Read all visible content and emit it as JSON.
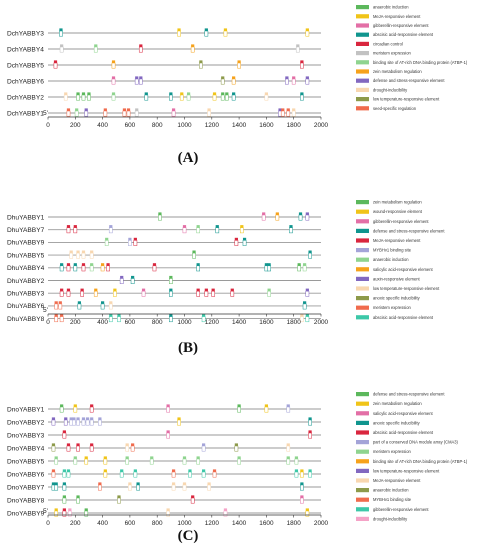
{
  "panels": [
    {
      "label": "(A)",
      "genes": [
        "DchYABBY3",
        "DchYABBY4",
        "DchYABBY5",
        "DchYABBY6",
        "DchYABBY2",
        "DchYABBY1"
      ],
      "axis": {
        "ticks": [
          "0",
          "200",
          "400",
          "600",
          "800",
          "1000",
          "1200",
          "1400",
          "1600",
          "1800",
          "2000"
        ],
        "five_prime": "5'"
      },
      "legend": [
        {
          "label": "anaerobic induction",
          "color": "#5cb85c"
        },
        {
          "label": "MeJA-responsive element",
          "color": "#f0c419"
        },
        {
          "label": "gibberellin-responsive element",
          "color": "#e36fa6"
        },
        {
          "label": "abscisic acid-responsive element",
          "color": "#10958e"
        },
        {
          "label": "circadian control",
          "color": "#d9263e"
        },
        {
          "label": "meristem expression",
          "color": "#c2c2c2"
        },
        {
          "label": "binding site of AT-rich DNA binding protein (ATBP-1)",
          "color": "#8fd48f"
        },
        {
          "label": "zein metabolism regulation",
          "color": "#f6a21b"
        },
        {
          "label": "defense and stress-responsive element",
          "color": "#8268c0"
        },
        {
          "label": "drought-inducibility",
          "color": "#f8d7b0"
        },
        {
          "label": "low temperature-responsive element",
          "color": "#8d9a4a"
        },
        {
          "label": "seed-specific regulation",
          "color": "#f06b4d"
        }
      ],
      "elements": [
        [
          [
            95,
            3
          ],
          [
            960,
            1
          ],
          [
            1160,
            3
          ],
          [
            1300,
            1
          ],
          [
            1900,
            1
          ]
        ],
        [
          [
            100,
            5
          ],
          [
            350,
            6
          ],
          [
            680,
            4
          ],
          [
            1060,
            7
          ],
          [
            1830,
            5
          ]
        ],
        [
          [
            55,
            4
          ],
          [
            480,
            7
          ],
          [
            1120,
            10
          ],
          [
            1400,
            7
          ],
          [
            1860,
            4
          ]
        ],
        [
          [
            480,
            2
          ],
          [
            650,
            8
          ],
          [
            680,
            8
          ],
          [
            1280,
            10
          ],
          [
            1360,
            7
          ],
          [
            1750,
            8
          ],
          [
            1800,
            2
          ],
          [
            1900,
            8
          ]
        ],
        [
          [
            130,
            9
          ],
          [
            220,
            0
          ],
          [
            260,
            0
          ],
          [
            300,
            0
          ],
          [
            480,
            6
          ],
          [
            720,
            3
          ],
          [
            900,
            3
          ],
          [
            980,
            1
          ],
          [
            1030,
            6
          ],
          [
            1220,
            1
          ],
          [
            1280,
            0
          ],
          [
            1310,
            0
          ],
          [
            1360,
            3
          ],
          [
            1600,
            9
          ],
          [
            1860,
            3
          ]
        ],
        [
          [
            150,
            11
          ],
          [
            210,
            6
          ],
          [
            280,
            8
          ],
          [
            420,
            11
          ],
          [
            560,
            11
          ],
          [
            590,
            11
          ],
          [
            650,
            5
          ],
          [
            920,
            2
          ],
          [
            1180,
            9
          ],
          [
            1700,
            8
          ],
          [
            1720,
            11
          ],
          [
            1760,
            11
          ],
          [
            1800,
            9
          ]
        ]
      ]
    },
    {
      "label": "(B)",
      "genes": [
        "DhuYABBY1",
        "DhuYABBY7",
        "DhuYABBY9",
        "DhuYABBY5",
        "DhuYABBY4",
        "DhuYABBY2",
        "DhuYABBY3",
        "DhuYABBY6",
        "DhuYABBY8"
      ],
      "axis": {
        "ticks": [
          "0",
          "200",
          "400",
          "600",
          "800",
          "1000",
          "1200",
          "1400",
          "1600",
          "1800",
          "2000"
        ],
        "five_prime": "5'"
      },
      "legend": [
        {
          "label": "zein metabolism regulation",
          "color": "#5cb85c"
        },
        {
          "label": "wound-responsive element",
          "color": "#f0c419"
        },
        {
          "label": "gibberellin-responsive element",
          "color": "#e36fa6"
        },
        {
          "label": "defense and stress-responsive element",
          "color": "#10958e"
        },
        {
          "label": "MeJA-responsive element",
          "color": "#d9263e"
        },
        {
          "label": "MYBHv1 binding site",
          "color": "#a4a4d8"
        },
        {
          "label": "anaerobic induction",
          "color": "#8fd48f"
        },
        {
          "label": "salicylic acid-responsive element",
          "color": "#f6a21b"
        },
        {
          "label": "auxin-responsive element",
          "color": "#8268c0"
        },
        {
          "label": "low temperature-responsive element",
          "color": "#f8d7b0"
        },
        {
          "label": "anoxic specific inducibility",
          "color": "#8d9a4a"
        },
        {
          "label": "meristem expression",
          "color": "#f06b4d"
        },
        {
          "label": "abscisic acid-responsive element",
          "color": "#3cc8a8"
        }
      ],
      "elements": [
        [
          [
            820,
            0
          ],
          [
            1580,
            2
          ],
          [
            1680,
            7
          ],
          [
            1850,
            3
          ],
          [
            1900,
            8
          ]
        ],
        [
          [
            150,
            4
          ],
          [
            200,
            4
          ],
          [
            460,
            5
          ],
          [
            1000,
            2
          ],
          [
            1100,
            6
          ],
          [
            1240,
            3
          ],
          [
            1420,
            1
          ],
          [
            1780,
            3
          ]
        ],
        [
          [
            430,
            6
          ],
          [
            600,
            5
          ],
          [
            640,
            4
          ],
          [
            1380,
            4
          ],
          [
            1440,
            3
          ]
        ],
        [
          [
            170,
            9
          ],
          [
            220,
            9
          ],
          [
            260,
            9
          ],
          [
            320,
            9
          ],
          [
            1070,
            0
          ],
          [
            1920,
            3
          ]
        ],
        [
          [
            100,
            3
          ],
          [
            150,
            4
          ],
          [
            200,
            3
          ],
          [
            260,
            4
          ],
          [
            320,
            6
          ],
          [
            400,
            7
          ],
          [
            440,
            4
          ],
          [
            780,
            4
          ],
          [
            1100,
            3
          ],
          [
            1600,
            3
          ],
          [
            1620,
            3
          ],
          [
            1840,
            0
          ],
          [
            1880,
            6
          ]
        ],
        [
          [
            540,
            8
          ],
          [
            620,
            3
          ],
          [
            900,
            0
          ]
        ],
        [
          [
            100,
            4
          ],
          [
            150,
            4
          ],
          [
            250,
            4
          ],
          [
            350,
            7
          ],
          [
            490,
            1
          ],
          [
            700,
            2
          ],
          [
            900,
            3
          ],
          [
            1100,
            4
          ],
          [
            1160,
            4
          ],
          [
            1210,
            4
          ],
          [
            1350,
            4
          ],
          [
            1620,
            6
          ],
          [
            1900,
            8
          ]
        ],
        [
          [
            60,
            11
          ],
          [
            90,
            11
          ],
          [
            230,
            3
          ],
          [
            400,
            3
          ],
          [
            460,
            9
          ],
          [
            1880,
            3
          ]
        ],
        [
          [
            60,
            11
          ],
          [
            100,
            11
          ],
          [
            460,
            12
          ],
          [
            520,
            12
          ],
          [
            900,
            3
          ],
          [
            1140,
            12
          ],
          [
            1860,
            9
          ],
          [
            1900,
            12
          ]
        ]
      ]
    },
    {
      "label": "(C)",
      "genes": [
        "DnoYABBY1",
        "DnoYABBY2",
        "DnoYABBY3",
        "DnoYABBY4",
        "DnoYABBY5",
        "DnoYABBY6",
        "DnoYABBY7",
        "DnoYABBY8",
        "DnoYABBY9"
      ],
      "axis": {
        "ticks": [
          "0",
          "200",
          "400",
          "600",
          "800",
          "1000",
          "1200",
          "1400",
          "1600",
          "1800",
          "2000"
        ],
        "five_prime": "5'"
      },
      "legend": [
        {
          "label": "defense and stress-responsive element",
          "color": "#5cb85c"
        },
        {
          "label": "zein metabolism regulation",
          "color": "#f0c419"
        },
        {
          "label": "salicylic acid-responsive element",
          "color": "#e36fa6"
        },
        {
          "label": "anoxic specific inducibility",
          "color": "#10958e"
        },
        {
          "label": "abscisic acid-responsive element",
          "color": "#d9263e"
        },
        {
          "label": "part of a conserved DNA module array (CMA3)",
          "color": "#a4a4d8"
        },
        {
          "label": "meristem expression",
          "color": "#8fd48f"
        },
        {
          "label": "binding site of AT-rich DNA binding protein (ATBP-1)",
          "color": "#f6a21b"
        },
        {
          "label": "low temperature-responsive element",
          "color": "#8268c0"
        },
        {
          "label": "MeJA-responsive element",
          "color": "#f8d7b0"
        },
        {
          "label": "anaerobic induction",
          "color": "#8d9a4a"
        },
        {
          "label": "MYBHv1 binding site",
          "color": "#f06b4d"
        },
        {
          "label": "gibberellin-responsive element",
          "color": "#3cc8a8"
        },
        {
          "label": "drought-inducibility",
          "color": "#f5a3c7"
        }
      ],
      "elements": [
        [
          [
            100,
            0
          ],
          [
            200,
            1
          ],
          [
            320,
            4
          ],
          [
            880,
            2
          ],
          [
            1400,
            0
          ],
          [
            1600,
            1
          ],
          [
            1760,
            5
          ]
        ],
        [
          [
            40,
            8
          ],
          [
            130,
            8
          ],
          [
            170,
            5
          ],
          [
            190,
            5
          ],
          [
            220,
            5
          ],
          [
            260,
            5
          ],
          [
            290,
            5
          ],
          [
            320,
            5
          ],
          [
            380,
            5
          ],
          [
            960,
            1
          ],
          [
            1920,
            3
          ]
        ],
        [
          [
            120,
            4
          ],
          [
            880,
            2
          ],
          [
            1920,
            4
          ]
        ],
        [
          [
            40,
            10
          ],
          [
            150,
            4
          ],
          [
            220,
            4
          ],
          [
            320,
            4
          ],
          [
            580,
            9
          ],
          [
            620,
            11
          ],
          [
            1140,
            5
          ],
          [
            1380,
            10
          ],
          [
            1760,
            9
          ]
        ],
        [
          [
            60,
            6
          ],
          [
            200,
            6
          ],
          [
            280,
            1
          ],
          [
            420,
            1
          ],
          [
            580,
            6
          ],
          [
            760,
            6
          ],
          [
            1000,
            6
          ],
          [
            1100,
            6
          ],
          [
            1400,
            6
          ],
          [
            1760,
            6
          ],
          [
            1820,
            6
          ]
        ],
        [
          [
            40,
            11
          ],
          [
            120,
            12
          ],
          [
            150,
            12
          ],
          [
            420,
            1
          ],
          [
            540,
            12
          ],
          [
            640,
            12
          ],
          [
            920,
            11
          ],
          [
            1040,
            12
          ],
          [
            1140,
            12
          ],
          [
            1220,
            11
          ],
          [
            1820,
            12
          ],
          [
            1860,
            1
          ],
          [
            1920,
            12
          ]
        ],
        [
          [
            40,
            3
          ],
          [
            60,
            3
          ],
          [
            120,
            3
          ],
          [
            380,
            11
          ],
          [
            600,
            9
          ],
          [
            660,
            3
          ],
          [
            920,
            9
          ],
          [
            1000,
            9
          ],
          [
            1180,
            9
          ],
          [
            1860,
            3
          ]
        ],
        [
          [
            120,
            0
          ],
          [
            220,
            0
          ],
          [
            520,
            10
          ],
          [
            1060,
            4
          ],
          [
            1860,
            2
          ]
        ],
        [
          [
            60,
            1
          ],
          [
            120,
            4
          ],
          [
            160,
            13
          ],
          [
            280,
            0
          ],
          [
            880,
            9
          ],
          [
            1300,
            13
          ],
          [
            1900,
            1
          ]
        ]
      ]
    }
  ]
}
